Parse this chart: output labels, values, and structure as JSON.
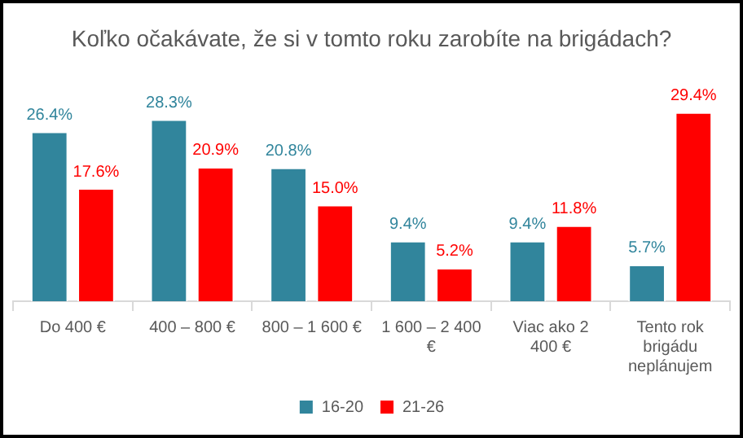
{
  "chart_data": {
    "type": "bar",
    "title": "Koľko očakávate, že si v tomto roku zarobíte na brigádach?",
    "categories": [
      "Do 400 €",
      "400 – 800 €",
      "800 – 1 600 €",
      "1 600 – 2 400 €",
      "Viac ako 2 400 €",
      "Tento rok brigádu neplánujem"
    ],
    "series": [
      {
        "name": "16-20",
        "color": "#31859c",
        "values": [
          26.4,
          28.3,
          20.8,
          9.4,
          9.4,
          5.7
        ],
        "value_labels": [
          "26.4%",
          "28.3%",
          "20.8%",
          "9.4%",
          "9.4%",
          "5.7%"
        ]
      },
      {
        "name": "21-26",
        "color": "#ff0000",
        "values": [
          17.6,
          20.9,
          15.0,
          5.2,
          11.8,
          29.4
        ],
        "value_labels": [
          "17.6%",
          "20.9%",
          "15.0%",
          "5.2%",
          "11.8%",
          "29.4%"
        ]
      }
    ],
    "legend": "bottom",
    "grid": false,
    "tick_labels": "x"
  }
}
